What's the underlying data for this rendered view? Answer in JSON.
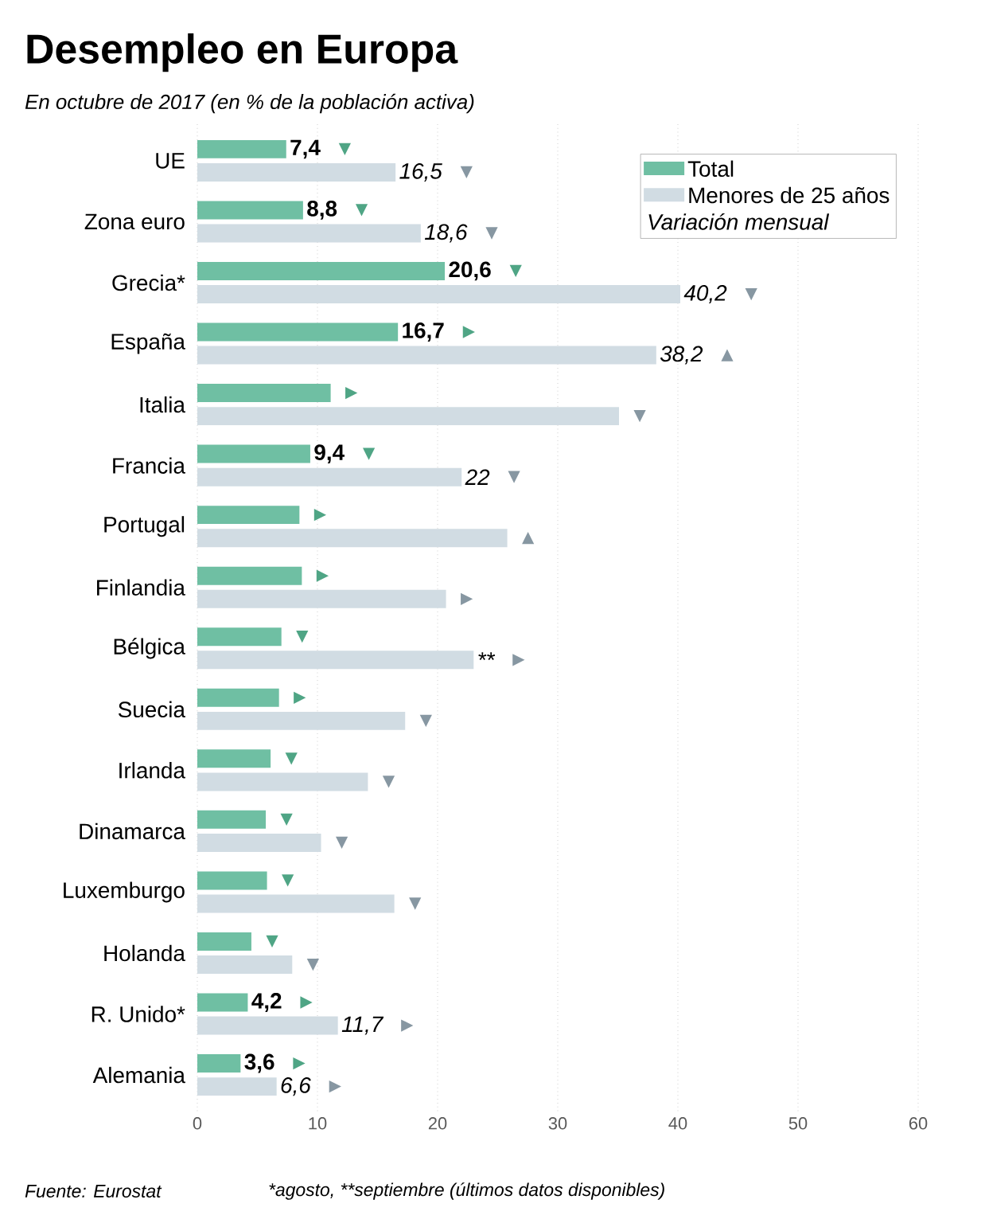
{
  "chart_data": {
    "type": "bar",
    "orientation": "horizontal",
    "title": "Desempleo en Europa",
    "subtitle": "En octubre de 2017  (en % de la población activa)",
    "categories": [
      "UE",
      "Zona euro",
      "Grecia*",
      "España",
      "Italia",
      "Francia",
      "Portugal",
      "Finlandia",
      "Bélgica",
      "Suecia",
      "Irlanda",
      "Dinamarca",
      "Luxemburgo",
      "Holanda",
      "R. Unido*",
      "Alemania"
    ],
    "series": [
      {
        "name": "Total",
        "color": "#6fbfa3",
        "values": [
          7.4,
          8.8,
          20.6,
          16.7,
          11.1,
          9.4,
          8.5,
          8.7,
          7.0,
          6.8,
          6.1,
          5.7,
          5.8,
          4.5,
          4.2,
          3.6
        ],
        "value_labels": [
          "7,4",
          "8,8",
          "20,6",
          "16,7",
          null,
          "9,4",
          null,
          null,
          null,
          null,
          null,
          null,
          null,
          null,
          "4,2",
          "3,6"
        ]
      },
      {
        "name": "Menores de 25 años",
        "color": "#d1dce3",
        "values": [
          16.5,
          18.6,
          40.2,
          38.2,
          35.1,
          22,
          25.8,
          20.7,
          23.0,
          17.3,
          14.2,
          10.3,
          16.4,
          7.9,
          11.7,
          6.6
        ],
        "value_labels": [
          "16,5",
          "18,6",
          "40,2",
          "38,2",
          null,
          "22",
          null,
          null,
          "**",
          null,
          null,
          null,
          null,
          null,
          "11,7",
          "6,6"
        ]
      }
    ],
    "xlim": [
      0,
      60
    ],
    "xticks": [
      0,
      10,
      20,
      30,
      40,
      50,
      60
    ],
    "grid": "x",
    "legend": "top right",
    "annotations": [
      "Variación mensual",
      "Fuente: Eurostat",
      "*agosto, **septiembre (últimos datos disponibles)",
      "▼",
      "▼",
      "▼",
      "▼",
      "▼",
      "▼",
      "▶",
      "▲",
      "▶",
      "▼",
      "▼",
      "▼",
      "▶",
      "▲",
      "▶",
      "▶",
      "▼",
      "▶",
      "▶",
      "▼",
      "▼",
      "▼",
      "▼",
      "▼",
      "▼",
      "▼",
      "▼",
      "▼",
      "▶",
      "▶",
      "▶",
      "▶"
    ]
  }
}
